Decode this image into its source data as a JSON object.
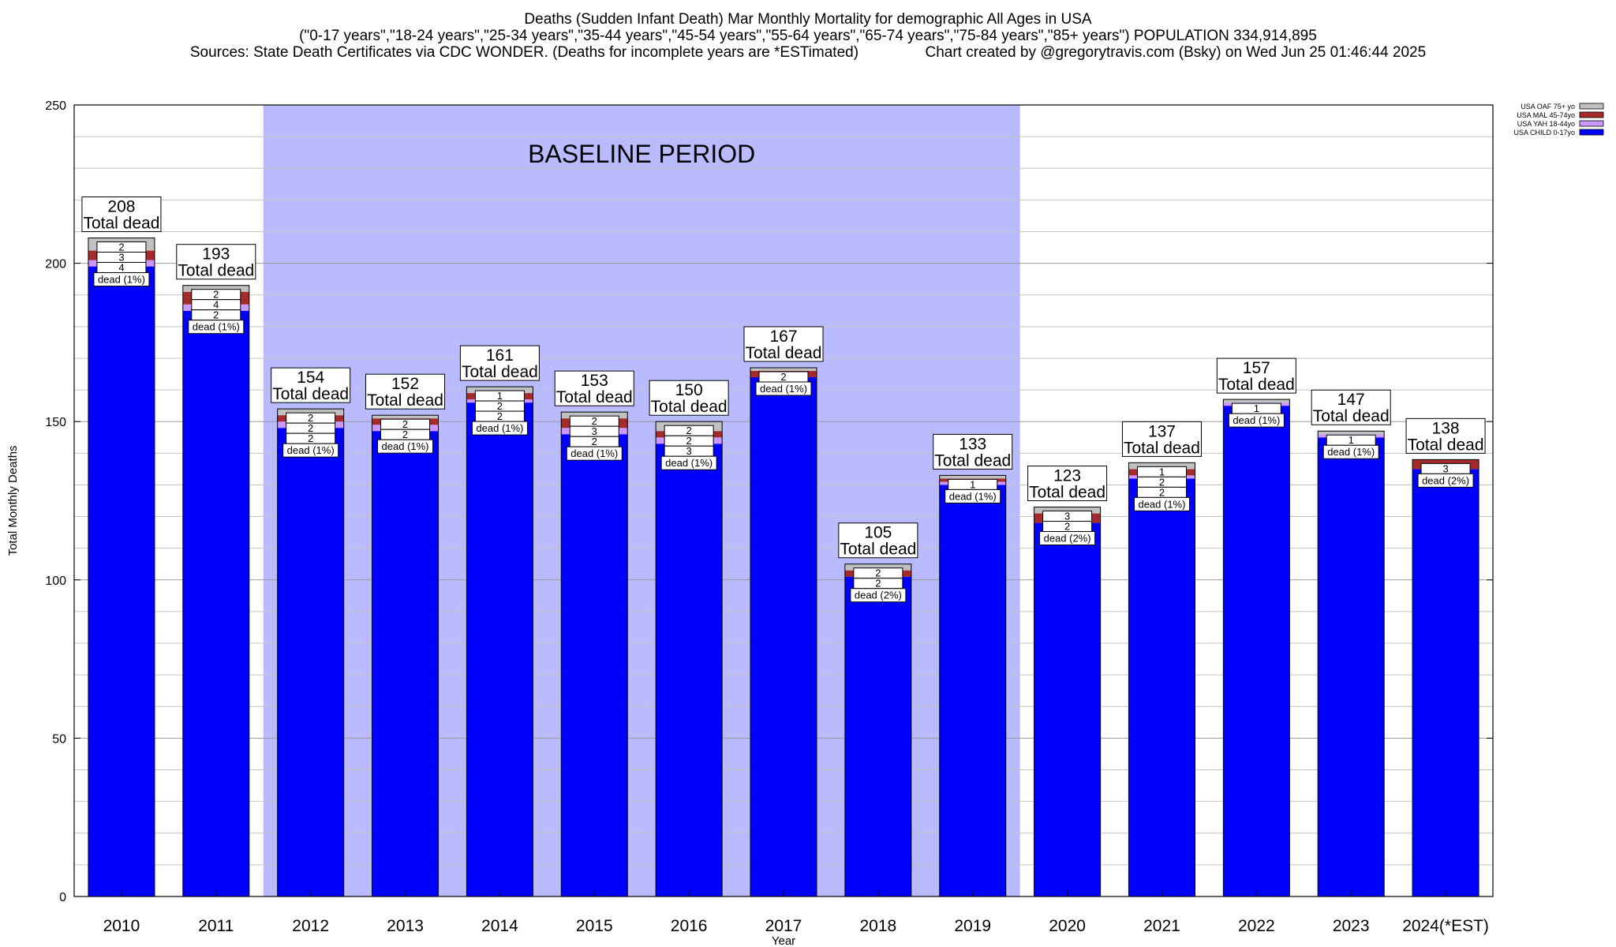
{
  "header": {
    "title": "Deaths (Sudden Infant Death) Mar Monthly Mortality for demographic All Ages in USA",
    "subtitle": "(\"0-17 years\",\"18-24 years\",\"25-34 years\",\"35-44 years\",\"45-54 years\",\"55-64 years\",\"65-74 years\",\"75-84 years\",\"85+ years\") POPULATION 334,914,895",
    "sources": "Sources: State Death Certificates via CDC WONDER. (Deaths for incomplete years are *ESTimated)",
    "credit": "Chart created by @gregorytravis.com (Bsky) on Wed Jun 25 01:46:44 2025"
  },
  "chart_data": {
    "type": "bar",
    "stacked": true,
    "xlabel": "Year",
    "ylabel": "Total Monthly Deaths",
    "ylim": [
      0,
      250
    ],
    "yticks": [
      0,
      50,
      100,
      150,
      200,
      250
    ],
    "grid": true,
    "legend_position": "top-right",
    "baseline_label": "BASELINE PERIOD",
    "baseline_range": [
      "2012",
      "2019"
    ],
    "categories": [
      "2010",
      "2011",
      "2012",
      "2013",
      "2014",
      "2015",
      "2016",
      "2017",
      "2018",
      "2019",
      "2020",
      "2021",
      "2022",
      "2023",
      "2024(*EST)"
    ],
    "totals": [
      208,
      193,
      154,
      152,
      161,
      153,
      150,
      167,
      105,
      133,
      123,
      137,
      157,
      147,
      138
    ],
    "total_label": "Total dead",
    "series": [
      {
        "name": "USA CHILD 0-17yo",
        "color": "#0000ff",
        "values": [
          199,
          185,
          148,
          147,
          156,
          146,
          143,
          164,
          101,
          130,
          118,
          132,
          155,
          145,
          135
        ]
      },
      {
        "name": "USA YAH 18-44yo",
        "color": "#cc99ff",
        "values": [
          2,
          2,
          2,
          2,
          1,
          2,
          2,
          0,
          0,
          1,
          0,
          1,
          1,
          1,
          0
        ]
      },
      {
        "name": "USA MAL 45-74yo",
        "color": "#a52a2a",
        "values": [
          3,
          4,
          2,
          2,
          2,
          3,
          2,
          2,
          2,
          1,
          3,
          2,
          0,
          0,
          3
        ]
      },
      {
        "name": "USA OAF 75+ yo",
        "color": "#c0c0c0",
        "values": [
          4,
          2,
          2,
          1,
          2,
          2,
          3,
          1,
          2,
          1,
          2,
          2,
          1,
          1,
          0
        ]
      }
    ],
    "inner_labels": [
      {
        "segs": [
          "2",
          "3",
          "4"
        ],
        "pct": "(1%)"
      },
      {
        "segs": [
          "2",
          "4",
          "2"
        ],
        "pct": "(1%)"
      },
      {
        "segs": [
          "2",
          "2",
          "2"
        ],
        "pct": "(1%)"
      },
      {
        "segs": [
          "2",
          "2"
        ],
        "pct": "(1%)"
      },
      {
        "segs": [
          "1",
          "2",
          "2"
        ],
        "pct": "(1%)"
      },
      {
        "segs": [
          "2",
          "3",
          "2"
        ],
        "pct": "(1%)"
      },
      {
        "segs": [
          "2",
          "2",
          "3"
        ],
        "pct": "(1%)"
      },
      {
        "segs": [
          "2"
        ],
        "pct": "(1%)"
      },
      {
        "segs": [
          "2",
          "2"
        ],
        "pct": "(2%)"
      },
      {
        "segs": [
          "1"
        ],
        "pct": "(1%)"
      },
      {
        "segs": [
          "3",
          "2"
        ],
        "pct": "(2%)"
      },
      {
        "segs": [
          "1",
          "2",
          "2"
        ],
        "pct": "(1%)"
      },
      {
        "segs": [
          "1"
        ],
        "pct": "(1%)"
      },
      {
        "segs": [
          "1"
        ],
        "pct": "(1%)"
      },
      {
        "segs": [
          "3"
        ],
        "pct": "(2%)"
      }
    ],
    "dead_word": "dead"
  }
}
